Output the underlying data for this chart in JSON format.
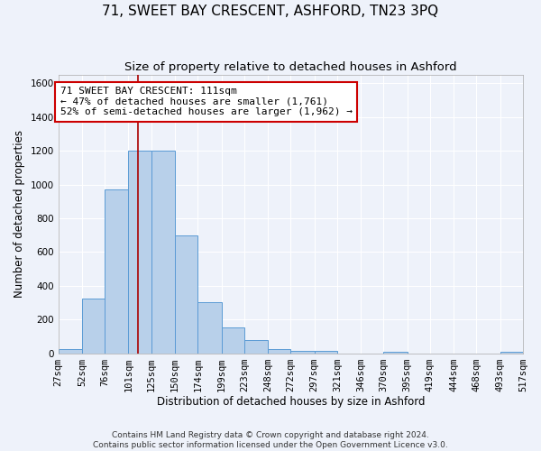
{
  "title": "71, SWEET BAY CRESCENT, ASHFORD, TN23 3PQ",
  "subtitle": "Size of property relative to detached houses in Ashford",
  "xlabel": "Distribution of detached houses by size in Ashford",
  "ylabel": "Number of detached properties",
  "bin_labels": [
    "27sqm",
    "52sqm",
    "76sqm",
    "101sqm",
    "125sqm",
    "150sqm",
    "174sqm",
    "199sqm",
    "223sqm",
    "248sqm",
    "272sqm",
    "297sqm",
    "321sqm",
    "346sqm",
    "370sqm",
    "395sqm",
    "419sqm",
    "444sqm",
    "468sqm",
    "493sqm",
    "517sqm"
  ],
  "bin_edges": [
    27,
    52,
    76,
    101,
    125,
    150,
    174,
    199,
    223,
    248,
    272,
    297,
    321,
    346,
    370,
    395,
    419,
    444,
    468,
    493,
    517
  ],
  "bar_heights": [
    25,
    325,
    970,
    1200,
    1200,
    700,
    305,
    155,
    80,
    25,
    15,
    15,
    0,
    0,
    10,
    0,
    0,
    0,
    0,
    10
  ],
  "bar_color": "#b8d0ea",
  "bar_edge_color": "#5b9bd5",
  "bar_edge_width": 0.7,
  "ylim": [
    0,
    1650
  ],
  "yticks": [
    0,
    200,
    400,
    600,
    800,
    1000,
    1200,
    1400,
    1600
  ],
  "property_size": 111,
  "red_line_color": "#aa0000",
  "annotation_text": "71 SWEET BAY CRESCENT: 111sqm\n← 47% of detached houses are smaller (1,761)\n52% of semi-detached houses are larger (1,962) →",
  "annotation_box_color": "#ffffff",
  "annotation_box_edge": "#cc0000",
  "footnote": "Contains HM Land Registry data © Crown copyright and database right 2024.\nContains public sector information licensed under the Open Government Licence v3.0.",
  "background_color": "#eef2fa",
  "grid_color": "#ffffff",
  "title_fontsize": 11,
  "subtitle_fontsize": 9.5,
  "axis_label_fontsize": 8.5,
  "tick_fontsize": 7.5,
  "annotation_fontsize": 8,
  "footnote_fontsize": 6.5
}
